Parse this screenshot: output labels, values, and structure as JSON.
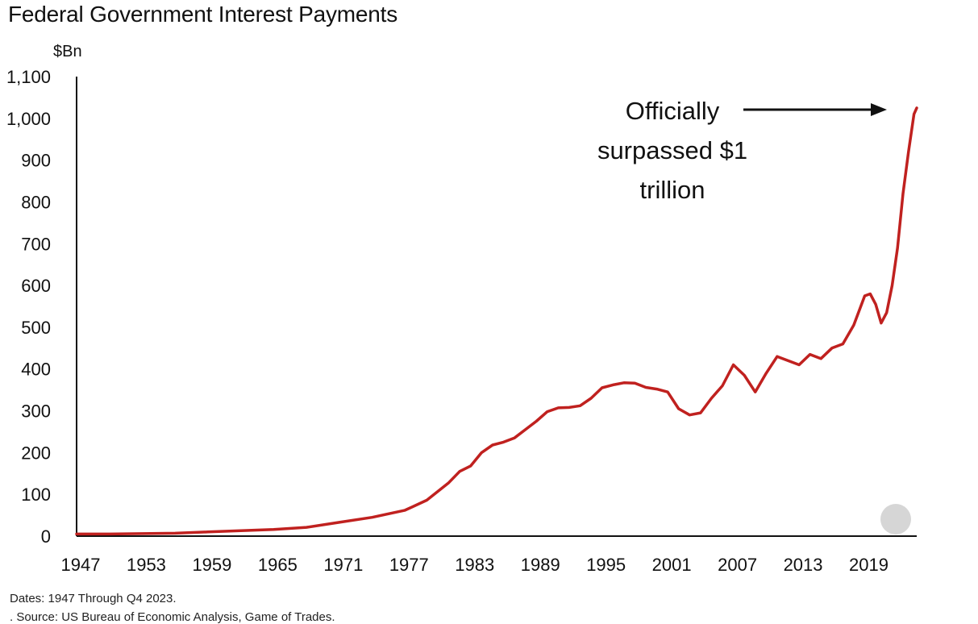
{
  "chart_data": {
    "type": "line",
    "title": "Federal Government Interest Payments",
    "ylabel": "$Bn",
    "xlabel": "",
    "ylim": [
      0,
      1100
    ],
    "xlim": [
      1947,
      2023.75
    ],
    "yticks": [
      0,
      100,
      200,
      300,
      400,
      500,
      600,
      700,
      800,
      900,
      1000,
      1100
    ],
    "ytick_labels": [
      "0",
      "100",
      "200",
      "300",
      "400",
      "500",
      "600",
      "700",
      "800",
      "900",
      "1,000",
      "1,100"
    ],
    "xticks": [
      1947,
      1953,
      1959,
      1965,
      1971,
      1977,
      1983,
      1989,
      1995,
      2001,
      2007,
      2013,
      2019
    ],
    "xtick_labels": [
      "1947",
      "1953",
      "1959",
      "1965",
      "1971",
      "1977",
      "1983",
      "1989",
      "1995",
      "2001",
      "2007",
      "2013",
      "2019"
    ],
    "grid": false,
    "series": [
      {
        "color": "#c0211f",
        "x": [
          1947,
          1950,
          1953,
          1956,
          1959,
          1962,
          1965,
          1968,
          1971,
          1974,
          1977,
          1979,
          1981,
          1982,
          1983,
          1984,
          1985,
          1986,
          1987,
          1988,
          1989,
          1990,
          1991,
          1992,
          1993,
          1994,
          1995,
          1996,
          1997,
          1998,
          1999,
          2000,
          2001,
          2002,
          2003,
          2004,
          2005,
          2006,
          2007,
          2008,
          2009,
          2010,
          2011,
          2012,
          2013,
          2014,
          2015,
          2016,
          2017,
          2018,
          2019,
          2019.5,
          2020,
          2020.5,
          2021,
          2021.5,
          2022,
          2022.5,
          2023,
          2023.5,
          2023.75
        ],
        "y": [
          5,
          5,
          6,
          7,
          10,
          13,
          16,
          21,
          33,
          45,
          62,
          86,
          128,
          155,
          168,
          200,
          218,
          225,
          235,
          255,
          275,
          298,
          307,
          308,
          312,
          330,
          355,
          362,
          367,
          366,
          356,
          352,
          345,
          305,
          290,
          295,
          330,
          360,
          410,
          385,
          345,
          390,
          430,
          420,
          410,
          435,
          425,
          450,
          460,
          505,
          575,
          580,
          555,
          510,
          535,
          600,
          690,
          820,
          920,
          1010,
          1025
        ]
      }
    ],
    "annotations": [
      {
        "text": "Officially surpassed $1 trillion"
      }
    ]
  },
  "footnotes": {
    "dates": "Dates: 1947 Through Q4 2023.",
    "source": ". Source: US Bureau of Economic Analysis, Game of Trades."
  }
}
